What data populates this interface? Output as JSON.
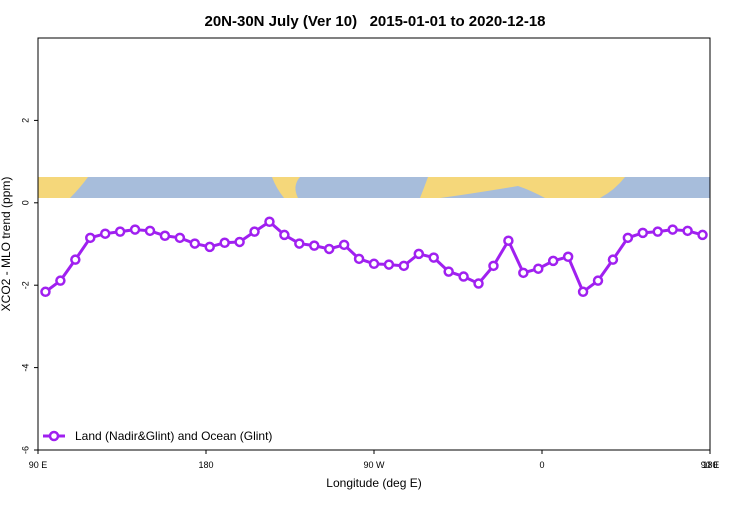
{
  "chart_data": {
    "type": "line",
    "title": "20N-30N July (Ver 10)   2015-01-01 to 2020-12-18",
    "x_label": "Longitude (deg E)",
    "y_label": "XCO2 - MLO trend (ppm)",
    "xlim": [
      90,
      450
    ],
    "ylim": [
      -6,
      4
    ],
    "xticks": [
      {
        "value": 90,
        "label": "90 E"
      },
      {
        "value": 180,
        "label": "180"
      },
      {
        "value": 270,
        "label": "90 W"
      },
      {
        "value": 360,
        "label": "0"
      },
      {
        "value": 450,
        "label": "90 E"
      },
      {
        "value": 540,
        "label": "180"
      }
    ],
    "yticks": [
      2,
      0,
      -2,
      -4,
      -6
    ],
    "legend": "bottom-left",
    "x": [
      94,
      102,
      110,
      118,
      126,
      134,
      142,
      150,
      158,
      166,
      174,
      182,
      190,
      198,
      206,
      214,
      222,
      230,
      238,
      246,
      254,
      262,
      270,
      278,
      286,
      294,
      302,
      310,
      318,
      326,
      334,
      342,
      350,
      358,
      366,
      374,
      382,
      390,
      398,
      406,
      414,
      422,
      430,
      438,
      446
    ],
    "series": [
      {
        "name": "Land (Nadir&Glint) and Ocean (Glint)",
        "color": "#a020f0",
        "values": [
          -2.16,
          -1.89,
          -1.38,
          -0.85,
          -0.75,
          -0.7,
          -0.65,
          -0.68,
          -0.8,
          -0.85,
          -0.99,
          -1.07,
          -0.97,
          -0.95,
          -0.7,
          -0.46,
          -0.78,
          -0.99,
          -1.04,
          -1.12,
          -1.02,
          -1.36,
          -1.48,
          -1.5,
          -1.53,
          -1.24,
          -1.33,
          -1.67,
          -1.79,
          -1.96,
          -1.53,
          -0.92,
          -1.7,
          -1.6,
          -1.41,
          -1.31,
          -2.16,
          -1.89,
          -1.38,
          -0.85,
          -0.73,
          -0.7,
          -0.65,
          -0.68,
          -0.78
        ]
      }
    ]
  }
}
